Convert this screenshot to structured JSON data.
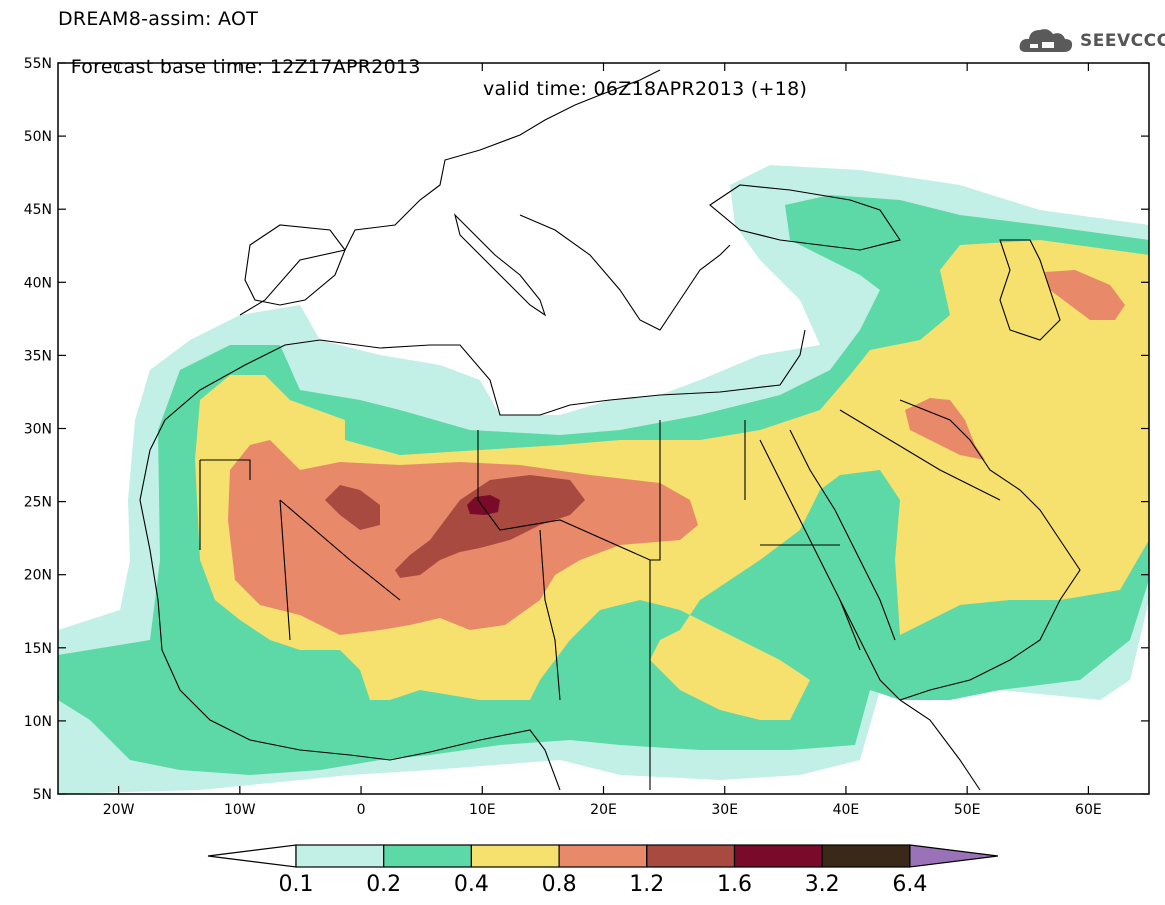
{
  "header": {
    "line1": "DREAM8-assim: AOT",
    "line2_left": "Forecast base time: 12Z17APR2013",
    "line2_right": "valid time: 06Z18APR2013 (+18)",
    "logo_text": "SEEVCCC",
    "logo_icon": "cloud-logo-icon"
  },
  "map": {
    "lat_range": [
      5,
      55
    ],
    "lon_range": [
      -25,
      65
    ],
    "lat_ticks": [
      {
        "v": 55,
        "label": "55N"
      },
      {
        "v": 50,
        "label": "50N"
      },
      {
        "v": 45,
        "label": "45N"
      },
      {
        "v": 40,
        "label": "40N"
      },
      {
        "v": 35,
        "label": "35N"
      },
      {
        "v": 30,
        "label": "30N"
      },
      {
        "v": 25,
        "label": "25N"
      },
      {
        "v": 20,
        "label": "20N"
      },
      {
        "v": 15,
        "label": "15N"
      },
      {
        "v": 10,
        "label": "10N"
      },
      {
        "v": 5,
        "label": "5N"
      }
    ],
    "lon_ticks": [
      {
        "v": -20,
        "label": "20W"
      },
      {
        "v": -10,
        "label": "10W"
      },
      {
        "v": 0,
        "label": "0"
      },
      {
        "v": 10,
        "label": "10E"
      },
      {
        "v": 20,
        "label": "20E"
      },
      {
        "v": 30,
        "label": "30E"
      },
      {
        "v": 40,
        "label": "40E"
      },
      {
        "v": 50,
        "label": "50E"
      },
      {
        "v": 60,
        "label": "60E"
      }
    ]
  },
  "colorbar": {
    "levels": [
      "0.1",
      "0.2",
      "0.4",
      "0.8",
      "1.2",
      "1.6",
      "3.2",
      "6.4"
    ],
    "colors": [
      "#ffffff",
      "#c2f0e6",
      "#5cd9a6",
      "#f6e06e",
      "#e8896a",
      "#a84a40",
      "#7a0a2a",
      "#3a2818",
      "#9a72b8"
    ]
  }
}
